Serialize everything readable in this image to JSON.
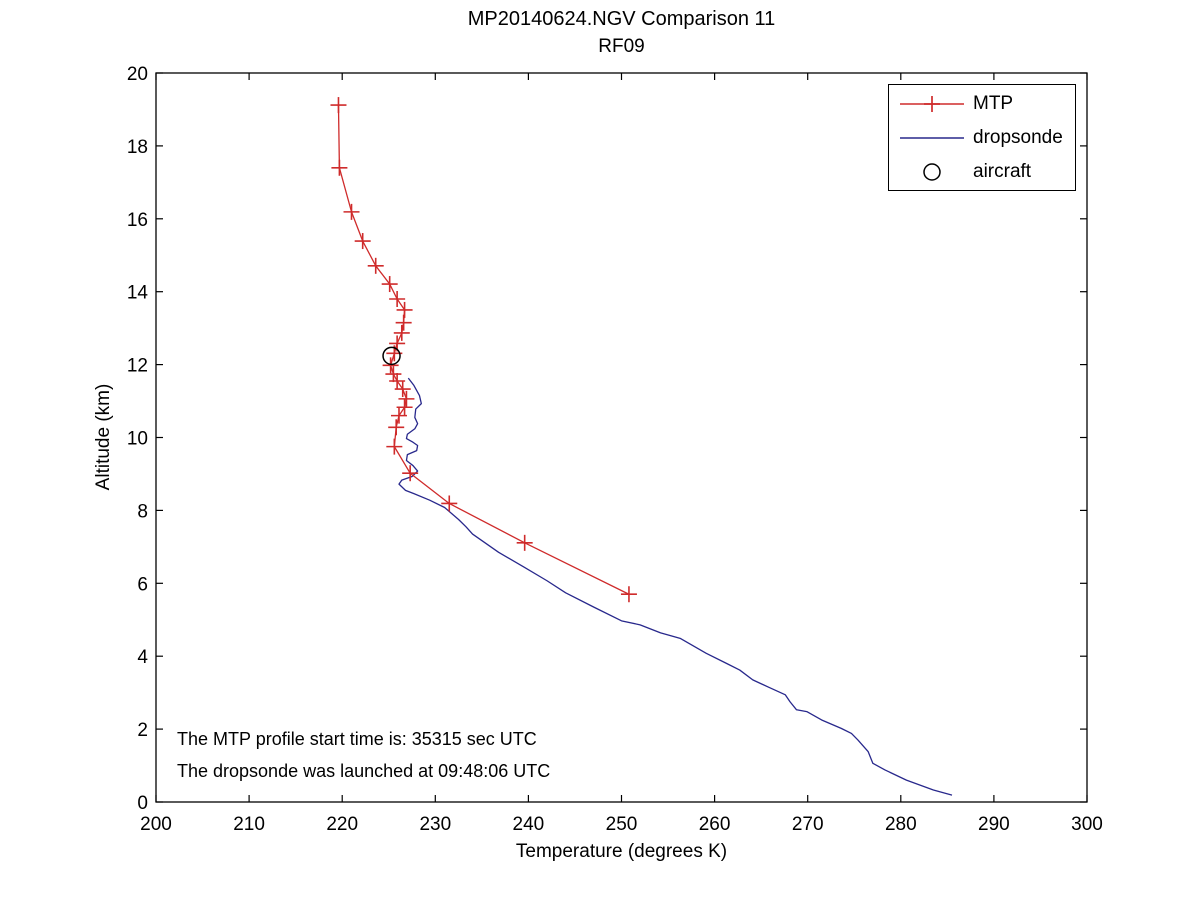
{
  "figure": {
    "background": "#ffffff",
    "axis_color": "#000000"
  },
  "legend": {
    "position": "top-right",
    "items": [
      {
        "label": "MTP",
        "style": "line-plus",
        "color": "#cf2b2b"
      },
      {
        "label": "dropsonde",
        "style": "line",
        "color": "#28288c"
      },
      {
        "label": "aircraft",
        "style": "circle",
        "color": "#000000"
      }
    ]
  },
  "chart_data": {
    "type": "line",
    "title": "MP20140624.NGV Comparison 11",
    "subtitle": "RF09",
    "xlabel": "Temperature (degrees K)",
    "ylabel": "Altitude (km)",
    "xlim": [
      200,
      300
    ],
    "ylim": [
      0,
      20
    ],
    "x_ticks": [
      200,
      210,
      220,
      230,
      240,
      250,
      260,
      270,
      280,
      290,
      300
    ],
    "y_ticks": [
      0,
      2,
      4,
      6,
      8,
      10,
      12,
      14,
      16,
      18,
      20
    ],
    "grid": false,
    "legend_position": "top-right",
    "series": [
      {
        "name": "dropsonde",
        "color": "#28288c",
        "marker": "none",
        "line": true,
        "points": [
          [
            227.1,
            11.63
          ],
          [
            227.7,
            11.43
          ],
          [
            228.3,
            11.15
          ],
          [
            228.5,
            10.93
          ],
          [
            227.9,
            10.78
          ],
          [
            227.8,
            10.55
          ],
          [
            228.1,
            10.38
          ],
          [
            227.8,
            10.24
          ],
          [
            227.0,
            10.09
          ],
          [
            226.9,
            9.97
          ],
          [
            227.6,
            9.87
          ],
          [
            228.1,
            9.78
          ],
          [
            228.0,
            9.64
          ],
          [
            227.0,
            9.53
          ],
          [
            226.9,
            9.37
          ],
          [
            227.6,
            9.23
          ],
          [
            228.1,
            9.08
          ],
          [
            227.5,
            8.93
          ],
          [
            226.4,
            8.83
          ],
          [
            226.1,
            8.72
          ],
          [
            226.8,
            8.55
          ],
          [
            227.7,
            8.46
          ],
          [
            229.4,
            8.28
          ],
          [
            231.0,
            8.08
          ],
          [
            232.5,
            7.75
          ],
          [
            233.3,
            7.55
          ],
          [
            234.0,
            7.35
          ],
          [
            236.8,
            6.85
          ],
          [
            239.5,
            6.45
          ],
          [
            242.0,
            6.07
          ],
          [
            244.0,
            5.74
          ],
          [
            247.0,
            5.35
          ],
          [
            250.0,
            4.97
          ],
          [
            252.0,
            4.86
          ],
          [
            254.2,
            4.64
          ],
          [
            256.3,
            4.49
          ],
          [
            259.1,
            4.08
          ],
          [
            261.3,
            3.8
          ],
          [
            262.7,
            3.62
          ],
          [
            264.1,
            3.35
          ],
          [
            265.8,
            3.15
          ],
          [
            267.6,
            2.94
          ],
          [
            268.1,
            2.75
          ],
          [
            268.8,
            2.53
          ],
          [
            269.9,
            2.48
          ],
          [
            271.5,
            2.25
          ],
          [
            273.6,
            2.02
          ],
          [
            274.7,
            1.88
          ],
          [
            275.4,
            1.7
          ],
          [
            276.5,
            1.38
          ],
          [
            277.0,
            1.06
          ],
          [
            278.3,
            0.88
          ],
          [
            280.6,
            0.6
          ],
          [
            283.5,
            0.33
          ],
          [
            285.5,
            0.19
          ]
        ]
      },
      {
        "name": "MTP",
        "color": "#cf2b2b",
        "marker": "plus",
        "line": true,
        "points": [
          [
            219.6,
            19.12
          ],
          [
            219.7,
            17.4
          ],
          [
            221.0,
            16.19
          ],
          [
            222.2,
            15.39
          ],
          [
            223.6,
            14.71
          ],
          [
            225.1,
            14.21
          ],
          [
            225.9,
            13.8
          ],
          [
            226.7,
            13.5
          ],
          [
            226.6,
            13.15
          ],
          [
            226.4,
            12.87
          ],
          [
            225.9,
            12.58
          ],
          [
            225.6,
            12.31
          ],
          [
            225.2,
            11.98
          ],
          [
            225.5,
            11.74
          ],
          [
            225.9,
            11.55
          ],
          [
            226.5,
            11.33
          ],
          [
            226.9,
            11.06
          ],
          [
            226.7,
            10.83
          ],
          [
            226.1,
            10.6
          ],
          [
            225.8,
            10.28
          ],
          [
            225.6,
            9.75
          ],
          [
            227.3,
            9.02
          ],
          [
            231.5,
            8.19
          ],
          [
            239.6,
            7.11
          ],
          [
            250.8,
            5.7
          ]
        ]
      },
      {
        "name": "aircraft",
        "color": "#000000",
        "marker": "circle",
        "line": false,
        "points": [
          [
            225.3,
            12.24
          ]
        ]
      }
    ],
    "annotations": [
      {
        "text": "The MTP profile start time is: 35315 sec UTC"
      },
      {
        "text": "The dropsonde was launched at 09:48:06 UTC"
      }
    ]
  }
}
